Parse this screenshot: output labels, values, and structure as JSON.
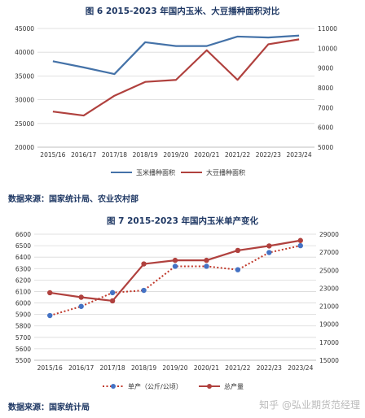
{
  "chart_data": [
    {
      "type": "line",
      "title": "图 6 2015-2023 年国内玉米、大豆播种面积对比",
      "source": "数据来源：国家统计局、农业农村部",
      "categories": [
        "2015/16",
        "2016/17",
        "2017/18",
        "2018/19",
        "2019/20",
        "2020/21",
        "2021/22",
        "2022/23",
        "2023/24"
      ],
      "y_left": {
        "ylim": [
          20000,
          45000
        ],
        "ticks": [
          20000,
          25000,
          30000,
          35000,
          40000,
          45000
        ]
      },
      "y_right": {
        "ylim": [
          5000,
          11000
        ],
        "ticks": [
          5000,
          6000,
          7000,
          8000,
          9000,
          10000,
          11000
        ]
      },
      "grid": true,
      "legend": "bottom",
      "series": [
        {
          "name": "玉米播种面积",
          "axis": "left",
          "color": "#4472a8",
          "style": "solid",
          "values": [
            38100,
            36800,
            35400,
            42100,
            41300,
            41300,
            43300,
            43100,
            43500
          ]
        },
        {
          "name": "大豆播种面积",
          "axis": "right",
          "color": "#b0413e",
          "style": "solid",
          "values": [
            6800,
            6600,
            7600,
            8300,
            8400,
            9900,
            8400,
            10200,
            10450
          ]
        }
      ]
    },
    {
      "type": "line",
      "title": "图 7 2015-2023 年国内玉米单产变化",
      "source": "数据来源：国家统计局",
      "categories": [
        "2015/16",
        "2016/17",
        "2017/18",
        "2018/19",
        "2019/20",
        "2020/21",
        "2021/22",
        "2022/23",
        "2023/24"
      ],
      "y_left": {
        "ylim": [
          5500,
          6600
        ],
        "ticks": [
          5500,
          5600,
          5700,
          5800,
          5900,
          6000,
          6100,
          6200,
          6300,
          6400,
          6500,
          6600
        ]
      },
      "y_right": {
        "ylim": [
          15000,
          29000
        ],
        "ticks": [
          15000,
          17000,
          19000,
          21000,
          23000,
          25000,
          27000,
          29000
        ]
      },
      "grid": true,
      "legend": "bottom",
      "series": [
        {
          "name": "单产（公斤/公顷）",
          "axis": "left",
          "color": "#c0392b",
          "marker_color": "#4472c4",
          "style": "dotted",
          "values": [
            5890,
            5970,
            6090,
            6110,
            6320,
            6320,
            6290,
            6440,
            6500
          ]
        },
        {
          "name": "总产量",
          "axis": "right",
          "color": "#b0413e",
          "marker_color": "#b0413e",
          "style": "solid",
          "values": [
            22500,
            22000,
            21600,
            25700,
            26100,
            26100,
            27200,
            27700,
            28300
          ]
        }
      ]
    }
  ],
  "watermark": "知乎 @弘业期货范经理"
}
